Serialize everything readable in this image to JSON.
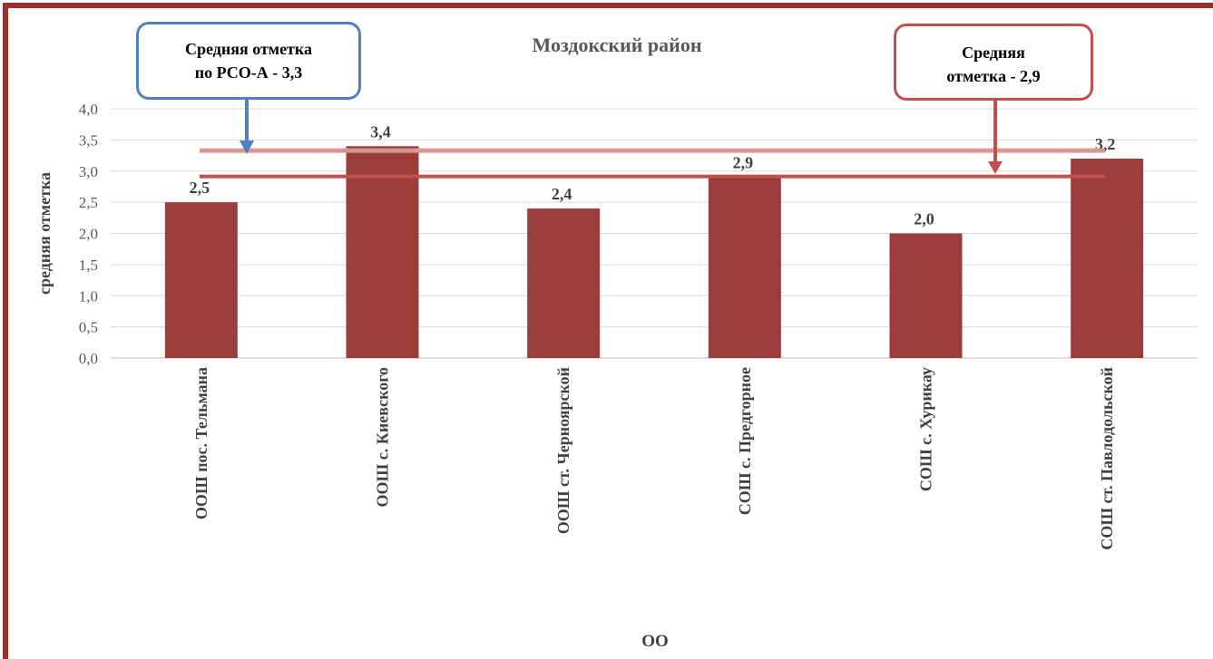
{
  "chart_data": {
    "type": "bar",
    "title": "Моздокский район",
    "xlabel": "ОО",
    "ylabel": "средняя отметка",
    "categories": [
      "ООШ пос. Тельмана",
      "ООШ с. Киевского",
      "ООШ ст. Черноярской",
      "СОШ с. Предгорное",
      "СОШ с. Хурикау",
      "СОШ ст. Павлодольской"
    ],
    "values": [
      2.5,
      3.4,
      2.4,
      2.9,
      2.0,
      3.2
    ],
    "value_labels": [
      "2,5",
      "3,4",
      "2,4",
      "2,9",
      "2,0",
      "3,2"
    ],
    "ylim": [
      0,
      4
    ],
    "yticks": [
      "0,0",
      "0,5",
      "1,0",
      "1,5",
      "2,0",
      "2,5",
      "3,0",
      "3,5",
      "4,0"
    ],
    "grid": true,
    "reference_lines": [
      {
        "value": 3.3,
        "color": "#d99694"
      },
      {
        "value": 2.9,
        "color": "#c0504d"
      }
    ],
    "bar_color": "#9c3d3c"
  },
  "callouts": {
    "region": {
      "line1": "Средняя отметка",
      "line2": "по РСО-А - 3,3",
      "color": "#4f81bd"
    },
    "district": {
      "line1": "Средняя",
      "line2": "отметка - 2,9",
      "color": "#c0504d"
    }
  },
  "frame_color": "#9b2f2f"
}
